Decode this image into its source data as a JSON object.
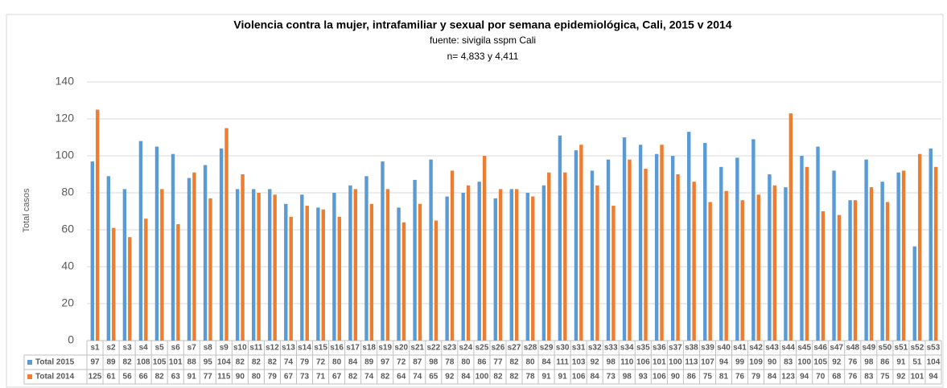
{
  "chart_data": {
    "type": "bar",
    "title": "Violencia contra la mujer, intrafamiliar y sexual por semana epidemiológica, Cali, 2015 v 2014",
    "subtitle": "fuente: sivigila sspm Cali",
    "note": "n= 4,833 y 4,411",
    "y_label": "Total casos",
    "categories": [
      "s1",
      "s2",
      "s3",
      "s4",
      "s5",
      "s6",
      "s7",
      "s8",
      "s9",
      "s10",
      "s11",
      "s12",
      "s13",
      "s14",
      "s15",
      "s16",
      "s17",
      "s18",
      "s19",
      "s20",
      "s21",
      "s22",
      "s23",
      "s24",
      "s25",
      "s26",
      "s27",
      "s28",
      "s29",
      "s30",
      "s31",
      "s32",
      "s33",
      "s34",
      "s35",
      "s36",
      "s37",
      "s38",
      "s39",
      "s40",
      "s41",
      "s42",
      "s43",
      "s44",
      "s45",
      "s46",
      "s47",
      "s48",
      "s49",
      "s50",
      "s51",
      "s52",
      "s53"
    ],
    "series": [
      {
        "name": "Total 2015",
        "color": "#5b9bd5",
        "values": [
          97,
          89,
          82,
          108,
          105,
          101,
          88,
          95,
          104,
          82,
          82,
          82,
          74,
          79,
          72,
          80,
          84,
          89,
          97,
          72,
          87,
          98,
          78,
          80,
          86,
          77,
          82,
          80,
          84,
          111,
          103,
          92,
          98,
          110,
          106,
          101,
          100,
          113,
          107,
          94,
          99,
          109,
          90,
          83,
          100,
          105,
          92,
          76,
          98,
          86,
          91,
          51,
          104
        ]
      },
      {
        "name": "Total 2014",
        "color": "#ed7d31",
        "values": [
          125,
          61,
          56,
          66,
          82,
          63,
          91,
          77,
          115,
          90,
          80,
          79,
          67,
          73,
          71,
          67,
          82,
          74,
          82,
          64,
          74,
          65,
          92,
          84,
          100,
          82,
          82,
          78,
          91,
          91,
          106,
          84,
          73,
          98,
          93,
          106,
          90,
          86,
          75,
          81,
          76,
          79,
          84,
          123,
          94,
          70,
          68,
          76,
          83,
          75,
          92,
          101,
          94
        ]
      }
    ],
    "ylim": [
      0,
      140
    ],
    "yticks": [
      0,
      20,
      40,
      60,
      80,
      100,
      120,
      140
    ],
    "grid": true
  }
}
